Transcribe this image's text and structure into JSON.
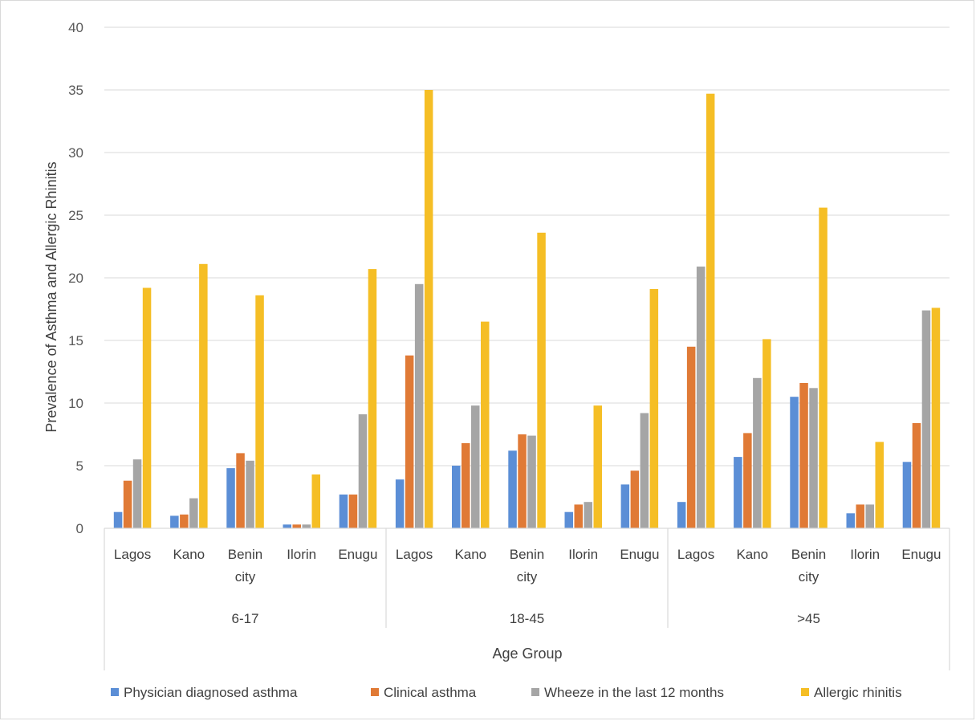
{
  "chart_data": {
    "type": "bar",
    "title": "",
    "xlabel": "Age Group",
    "ylabel": "Prevalence of Asthma and Allergic Rhinitis",
    "ylim": [
      0,
      40
    ],
    "yticks": [
      0,
      5,
      10,
      15,
      20,
      25,
      30,
      35,
      40
    ],
    "grid": true,
    "legend_position": "bottom",
    "groups": [
      {
        "label": "6-17",
        "categories": [
          "Lagos",
          "Kano",
          "Benin city",
          "Ilorin",
          "Enugu"
        ]
      },
      {
        "label": "18-45",
        "categories": [
          "Lagos",
          "Kano",
          "Benin city",
          "Ilorin",
          "Enugu"
        ]
      },
      {
        "label": ">45",
        "categories": [
          "Lagos",
          "Kano",
          "Benin city",
          "Ilorin",
          "Enugu"
        ]
      }
    ],
    "series": [
      {
        "name": "Physician diagnosed asthma",
        "color": "#5b8ed6",
        "values": [
          1.3,
          1.0,
          4.8,
          0.3,
          2.7,
          3.9,
          5.0,
          6.2,
          1.3,
          3.5,
          2.1,
          5.7,
          10.5,
          1.2,
          5.3
        ]
      },
      {
        "name": "Clinical asthma",
        "color": "#e07a36",
        "values": [
          3.8,
          1.1,
          6.0,
          0.3,
          2.7,
          13.8,
          6.8,
          7.5,
          1.9,
          4.6,
          14.5,
          7.6,
          11.6,
          1.9,
          8.4
        ]
      },
      {
        "name": "Wheeze in the last 12 months",
        "color": "#a5a5a5",
        "values": [
          5.5,
          2.4,
          5.4,
          0.3,
          9.1,
          19.5,
          9.8,
          7.4,
          2.1,
          9.2,
          20.9,
          12.0,
          11.2,
          1.9,
          17.4
        ]
      },
      {
        "name": "Allergic rhinitis",
        "color": "#f5be25",
        "values": [
          19.2,
          21.1,
          18.6,
          4.3,
          20.7,
          35.0,
          16.5,
          23.6,
          9.8,
          19.1,
          34.7,
          15.1,
          25.6,
          6.9,
          17.6
        ]
      }
    ]
  }
}
